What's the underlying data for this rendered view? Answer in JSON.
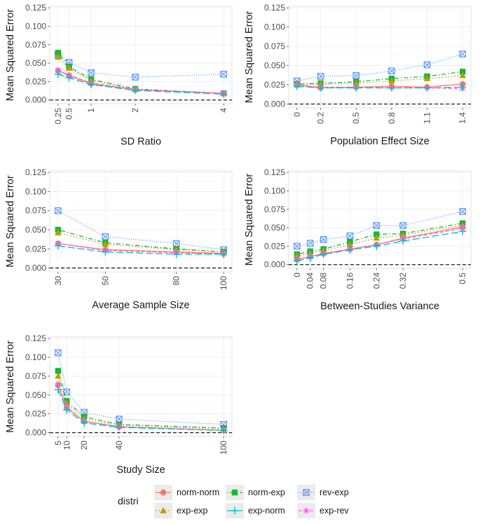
{
  "chart_data": [
    {
      "type": "line",
      "xlabel": "SD Ratio",
      "ylabel": "Mean Squared Error",
      "xlim": [
        0.25,
        4
      ],
      "ylim": [
        0,
        0.125
      ],
      "xticks": [
        0.25,
        0.5,
        1,
        2,
        4
      ],
      "xtick_labels": [
        "0.25",
        "0.5",
        "1",
        "2",
        "4"
      ],
      "yticks": [
        0,
        0.025,
        0.05,
        0.075,
        0.1,
        0.125
      ],
      "ytick_labels": [
        "0.000",
        "0.025",
        "0.050",
        "0.075",
        "0.100",
        "0.125"
      ],
      "x": [
        0.25,
        0.5,
        1,
        2,
        4
      ],
      "series": [
        {
          "name": "norm-norm",
          "values": [
            0.04,
            0.033,
            0.022,
            0.014,
            0.009
          ]
        },
        {
          "name": "norm-exp",
          "values": [
            0.064,
            0.045,
            0.028,
            0.015,
            0.009
          ]
        },
        {
          "name": "rev-exp",
          "values": [
            0.061,
            0.051,
            0.037,
            0.031,
            0.035
          ]
        },
        {
          "name": "exp-exp",
          "values": [
            0.058,
            0.043,
            0.026,
            0.014,
            0.009
          ]
        },
        {
          "name": "exp-norm",
          "values": [
            0.035,
            0.03,
            0.021,
            0.013,
            0.008
          ]
        },
        {
          "name": "exp-rev",
          "values": [
            0.04,
            0.034,
            0.023,
            0.014,
            0.009
          ]
        }
      ]
    },
    {
      "type": "line",
      "xlabel": "Population Effect Size",
      "ylabel": "Mean Squared Error",
      "xlim": [
        0,
        1.4
      ],
      "ylim": [
        0,
        0.125
      ],
      "xticks": [
        0,
        0.2,
        0.5,
        0.8,
        1.1,
        1.4
      ],
      "xtick_labels": [
        "0",
        "0.2",
        "0.5",
        "0.8",
        "1.1",
        "1.4"
      ],
      "yticks": [
        0,
        0.025,
        0.05,
        0.075,
        0.1,
        0.125
      ],
      "ytick_labels": [
        "0.000",
        "0.025",
        "0.050",
        "0.075",
        "0.100",
        "0.125"
      ],
      "x": [
        0,
        0.2,
        0.5,
        0.8,
        1.1,
        1.4
      ],
      "series": [
        {
          "name": "norm-norm",
          "values": [
            0.025,
            0.021,
            0.022,
            0.023,
            0.022,
            0.026
          ]
        },
        {
          "name": "norm-exp",
          "values": [
            0.026,
            0.027,
            0.029,
            0.033,
            0.036,
            0.042
          ]
        },
        {
          "name": "rev-exp",
          "values": [
            0.03,
            0.036,
            0.037,
            0.043,
            0.051,
            0.065
          ]
        },
        {
          "name": "exp-exp",
          "values": [
            0.025,
            0.026,
            0.027,
            0.03,
            0.033,
            0.037
          ]
        },
        {
          "name": "exp-norm",
          "values": [
            0.023,
            0.021,
            0.021,
            0.021,
            0.021,
            0.022
          ]
        },
        {
          "name": "exp-rev",
          "values": [
            0.024,
            0.022,
            0.022,
            0.021,
            0.021,
            0.02
          ]
        }
      ]
    },
    {
      "type": "line",
      "xlabel": "Average Sample Size",
      "ylabel": "Mean Squared Error",
      "xlim": [
        30,
        100
      ],
      "ylim": [
        0,
        0.125
      ],
      "xticks": [
        30,
        50,
        80,
        100
      ],
      "xtick_labels": [
        "30",
        "50",
        "80",
        "100"
      ],
      "yticks": [
        0,
        0.025,
        0.05,
        0.075,
        0.1,
        0.125
      ],
      "ytick_labels": [
        "0.000",
        "0.025",
        "0.050",
        "0.075",
        "0.100",
        "0.125"
      ],
      "x": [
        30,
        50,
        80,
        100
      ],
      "series": [
        {
          "name": "norm-norm",
          "values": [
            0.032,
            0.024,
            0.021,
            0.019
          ]
        },
        {
          "name": "norm-exp",
          "values": [
            0.05,
            0.033,
            0.025,
            0.021
          ]
        },
        {
          "name": "rev-exp",
          "values": [
            0.075,
            0.041,
            0.032,
            0.024
          ]
        },
        {
          "name": "exp-exp",
          "values": [
            0.046,
            0.031,
            0.024,
            0.021
          ]
        },
        {
          "name": "exp-norm",
          "values": [
            0.029,
            0.021,
            0.018,
            0.018
          ]
        },
        {
          "name": "exp-rev",
          "values": [
            0.032,
            0.023,
            0.02,
            0.018
          ]
        }
      ]
    },
    {
      "type": "line",
      "xlabel": "Between-Studies Variance",
      "ylabel": "Mean Squared Error",
      "xlim": [
        0,
        0.5
      ],
      "ylim": [
        0,
        0.125
      ],
      "xticks": [
        0,
        0.04,
        0.08,
        0.16,
        0.24,
        0.32,
        0.5
      ],
      "xtick_labels": [
        "0",
        "0.04",
        "0.08",
        "0.16",
        "0.24",
        "0.32",
        "0.5"
      ],
      "yticks": [
        0,
        0.025,
        0.05,
        0.075,
        0.1,
        0.125
      ],
      "ytick_labels": [
        "0.000",
        "0.025",
        "0.050",
        "0.075",
        "0.100",
        "0.125"
      ],
      "x": [
        0,
        0.04,
        0.08,
        0.16,
        0.24,
        0.32,
        0.5
      ],
      "series": [
        {
          "name": "norm-norm",
          "values": [
            0.007,
            0.011,
            0.015,
            0.021,
            0.027,
            0.036,
            0.051
          ]
        },
        {
          "name": "norm-exp",
          "values": [
            0.014,
            0.018,
            0.021,
            0.031,
            0.041,
            0.042,
            0.056
          ]
        },
        {
          "name": "rev-exp",
          "values": [
            0.025,
            0.029,
            0.034,
            0.039,
            0.053,
            0.053,
            0.072
          ]
        },
        {
          "name": "exp-exp",
          "values": [
            0.012,
            0.015,
            0.019,
            0.027,
            0.036,
            0.04,
            0.053
          ]
        },
        {
          "name": "exp-norm",
          "values": [
            0.005,
            0.009,
            0.014,
            0.02,
            0.025,
            0.032,
            0.045
          ]
        },
        {
          "name": "exp-rev",
          "values": [
            0.007,
            0.011,
            0.015,
            0.021,
            0.027,
            0.035,
            0.049
          ]
        }
      ]
    },
    {
      "type": "line",
      "xlabel": "Study Size",
      "ylabel": "Mean Squared Error",
      "xlim": [
        5,
        100
      ],
      "ylim": [
        0,
        0.125
      ],
      "xticks": [
        5,
        10,
        20,
        40,
        100
      ],
      "xtick_labels": [
        "5",
        "10",
        "20",
        "40",
        "100"
      ],
      "yticks": [
        0,
        0.025,
        0.05,
        0.075,
        0.1,
        0.125
      ],
      "ytick_labels": [
        "0.000",
        "0.025",
        "0.050",
        "0.075",
        "0.100",
        "0.125"
      ],
      "x": [
        5,
        10,
        20,
        40,
        100
      ],
      "series": [
        {
          "name": "norm-norm",
          "values": [
            0.063,
            0.033,
            0.015,
            0.008,
            0.003
          ]
        },
        {
          "name": "norm-exp",
          "values": [
            0.082,
            0.042,
            0.021,
            0.011,
            0.006
          ]
        },
        {
          "name": "rev-exp",
          "values": [
            0.106,
            0.054,
            0.027,
            0.018,
            0.011
          ]
        },
        {
          "name": "exp-exp",
          "values": [
            0.075,
            0.039,
            0.018,
            0.01,
            0.005
          ]
        },
        {
          "name": "exp-norm",
          "values": [
            0.057,
            0.03,
            0.013,
            0.007,
            0.003
          ]
        },
        {
          "name": "exp-rev",
          "values": [
            0.065,
            0.034,
            0.015,
            0.008,
            0.003
          ]
        }
      ]
    }
  ],
  "legend": {
    "title": "distri",
    "entries": [
      {
        "name": "norm-norm",
        "color": "#f8766d",
        "marker": "circle",
        "dash": "solid"
      },
      {
        "name": "exp-exp",
        "color": "#b79f00",
        "marker": "triangle",
        "dash": "dotted"
      },
      {
        "name": "norm-exp",
        "color": "#1db438",
        "marker": "square",
        "dash": "dotdash"
      },
      {
        "name": "exp-norm",
        "color": "#00bfc4",
        "marker": "plus",
        "dash": "longdash"
      },
      {
        "name": "rev-exp",
        "color": "#619cff",
        "marker": "boxx",
        "dash": "densedot"
      },
      {
        "name": "exp-rev",
        "color": "#f564e3",
        "marker": "asterisk",
        "dash": "dashed"
      }
    ]
  }
}
